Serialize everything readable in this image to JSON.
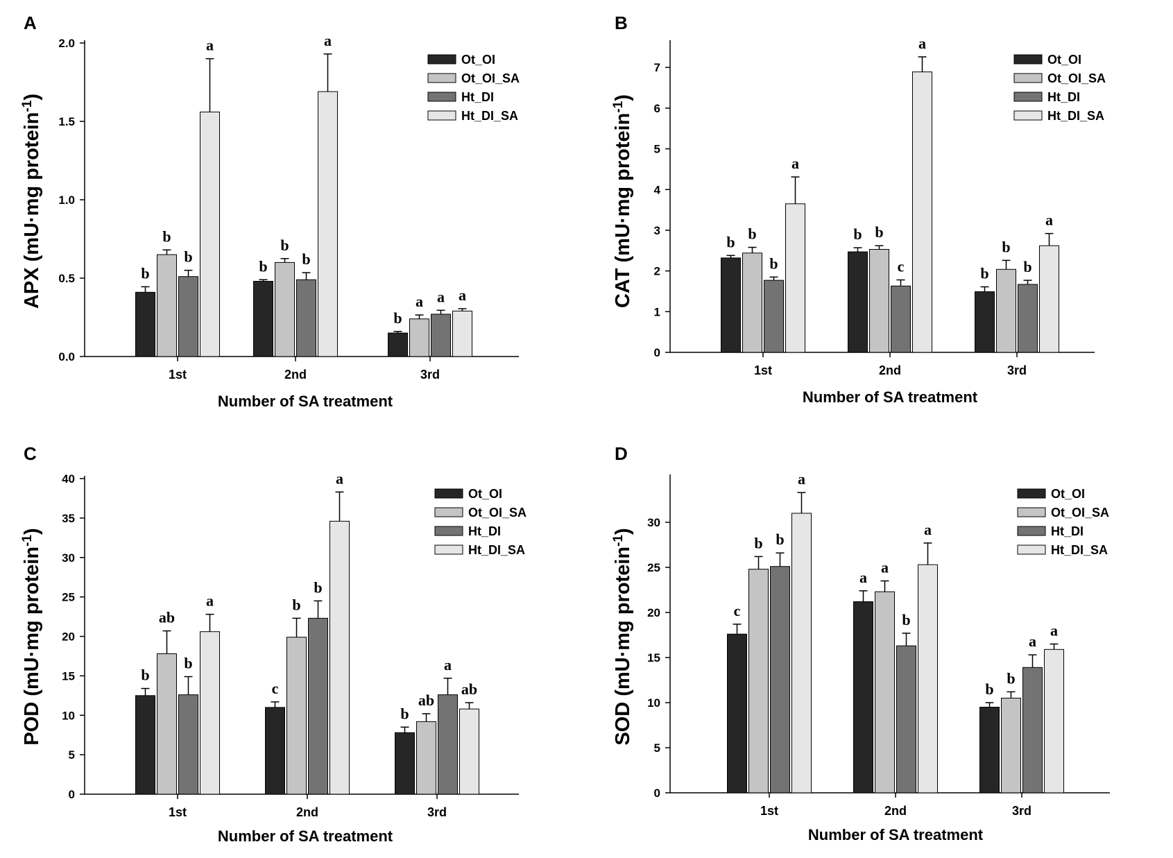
{
  "chart_data": [
    {
      "panel": "A",
      "type": "bar",
      "ylabel_main": "APX (mU·mg protein",
      "ylabel_sup": "-1",
      "ylabel_close": ")",
      "xlabel": "Number of SA treatment",
      "categories": [
        "1st",
        "2nd",
        "3rd"
      ],
      "ylim": [
        0,
        2.0
      ],
      "yticks": [
        0,
        0.5,
        1.0,
        1.5,
        2.0
      ],
      "ytick_labels": [
        "0.0",
        "0.5",
        "1.0",
        "1.5",
        "2.0"
      ],
      "legend_position": "top-right",
      "series": [
        {
          "name": "Ot_OI",
          "color": "#262626",
          "values": [
            0.41,
            0.48,
            0.15
          ],
          "errors": [
            0.035,
            0.01,
            0.01
          ],
          "letters": [
            "b",
            "b",
            "b"
          ]
        },
        {
          "name": "Ot_OI_SA",
          "color": "#c4c4c4",
          "values": [
            0.65,
            0.6,
            0.24
          ],
          "errors": [
            0.03,
            0.025,
            0.025
          ],
          "letters": [
            "b",
            "b",
            "a"
          ]
        },
        {
          "name": "Ht_DI",
          "color": "#737373",
          "values": [
            0.51,
            0.49,
            0.27
          ],
          "errors": [
            0.04,
            0.045,
            0.025
          ],
          "letters": [
            "b",
            "b",
            "a"
          ]
        },
        {
          "name": "Ht_DI_SA",
          "color": "#e6e6e6",
          "values": [
            1.56,
            1.69,
            0.29
          ],
          "errors": [
            0.34,
            0.24,
            0.015
          ],
          "letters": [
            "a",
            "a",
            "a"
          ]
        }
      ]
    },
    {
      "panel": "B",
      "type": "bar",
      "ylabel_main": "CAT (mU·mg protein",
      "ylabel_sup": "-1",
      "ylabel_close": ")",
      "xlabel": "Number of SA treatment",
      "categories": [
        "1st",
        "2nd",
        "3rd"
      ],
      "ylim": [
        0,
        7.6
      ],
      "yticks": [
        0,
        1,
        2,
        3,
        4,
        5,
        6,
        7
      ],
      "ytick_labels": [
        "0",
        "1",
        "2",
        "3",
        "4",
        "5",
        "6",
        "7"
      ],
      "legend_position": "top-right",
      "series": [
        {
          "name": "Ot_OI",
          "color": "#262626",
          "values": [
            2.32,
            2.47,
            1.49
          ],
          "errors": [
            0.06,
            0.1,
            0.12
          ],
          "letters": [
            "b",
            "b",
            "b"
          ]
        },
        {
          "name": "Ot_OI_SA",
          "color": "#c4c4c4",
          "values": [
            2.44,
            2.53,
            2.04
          ],
          "errors": [
            0.14,
            0.09,
            0.22
          ],
          "letters": [
            "b",
            "b",
            "b"
          ]
        },
        {
          "name": "Ht_DI",
          "color": "#737373",
          "values": [
            1.77,
            1.63,
            1.67
          ],
          "errors": [
            0.08,
            0.15,
            0.1
          ],
          "letters": [
            "b",
            "c",
            "b"
          ]
        },
        {
          "name": "Ht_DI_SA",
          "color": "#e6e6e6",
          "values": [
            3.65,
            6.89,
            2.62
          ],
          "errors": [
            0.66,
            0.37,
            0.3
          ],
          "letters": [
            "a",
            "a",
            "a"
          ]
        }
      ]
    },
    {
      "panel": "C",
      "type": "bar",
      "ylabel_main": "POD (mU·mg protein",
      "ylabel_sup": "-1",
      "ylabel_close": ")",
      "xlabel": "Number of SA treatment",
      "categories": [
        "1st",
        "2nd",
        "3rd"
      ],
      "ylim": [
        0,
        40
      ],
      "yticks": [
        0,
        5,
        10,
        15,
        20,
        25,
        30,
        35,
        40
      ],
      "ytick_labels": [
        "0",
        "5",
        "10",
        "15",
        "20",
        "25",
        "30",
        "35",
        "40"
      ],
      "legend_position": "top-right",
      "series": [
        {
          "name": "Ot_OI",
          "color": "#262626",
          "values": [
            12.5,
            11.0,
            7.8
          ],
          "errors": [
            0.9,
            0.7,
            0.7
          ],
          "letters": [
            "b",
            "c",
            "b"
          ]
        },
        {
          "name": "Ot_OI_SA",
          "color": "#c4c4c4",
          "values": [
            17.8,
            19.9,
            9.2
          ],
          "errors": [
            2.9,
            2.4,
            1.0
          ],
          "letters": [
            "ab",
            "b",
            "ab"
          ]
        },
        {
          "name": "Ht_DI",
          "color": "#737373",
          "values": [
            12.6,
            22.3,
            12.6
          ],
          "errors": [
            2.3,
            2.2,
            2.1
          ],
          "letters": [
            "b",
            "b",
            "a"
          ]
        },
        {
          "name": "Ht_DI_SA",
          "color": "#e6e6e6",
          "values": [
            20.6,
            34.6,
            10.8
          ],
          "errors": [
            2.2,
            3.7,
            0.8
          ],
          "letters": [
            "a",
            "a",
            "ab"
          ]
        }
      ]
    },
    {
      "panel": "D",
      "type": "bar",
      "ylabel_main": "SOD (mU·mg protein",
      "ylabel_sup": "-1",
      "ylabel_close": ")",
      "xlabel": "Number of SA treatment",
      "categories": [
        "1st",
        "2nd",
        "3rd"
      ],
      "ylim": [
        0,
        35
      ],
      "yticks": [
        0,
        5,
        10,
        15,
        20,
        25,
        30
      ],
      "ytick_labels": [
        "0",
        "5",
        "10",
        "15",
        "20",
        "25",
        "30"
      ],
      "legend_position": "top-right",
      "series": [
        {
          "name": "Ot_OI",
          "color": "#262626",
          "values": [
            17.6,
            21.2,
            9.5
          ],
          "errors": [
            1.1,
            1.2,
            0.5
          ],
          "letters": [
            "c",
            "a",
            "b"
          ]
        },
        {
          "name": "Ot_OI_SA",
          "color": "#c4c4c4",
          "values": [
            24.8,
            22.3,
            10.5
          ],
          "errors": [
            1.4,
            1.2,
            0.7
          ],
          "letters": [
            "b",
            "a",
            "b"
          ]
        },
        {
          "name": "Ht_DI",
          "color": "#737373",
          "values": [
            25.1,
            16.3,
            13.9
          ],
          "errors": [
            1.5,
            1.4,
            1.4
          ],
          "letters": [
            "b",
            "b",
            "a"
          ]
        },
        {
          "name": "Ht_DI_SA",
          "color": "#e6e6e6",
          "values": [
            31.0,
            25.3,
            15.9
          ],
          "errors": [
            2.3,
            2.4,
            0.6
          ],
          "letters": [
            "a",
            "a",
            "a"
          ]
        }
      ]
    }
  ]
}
